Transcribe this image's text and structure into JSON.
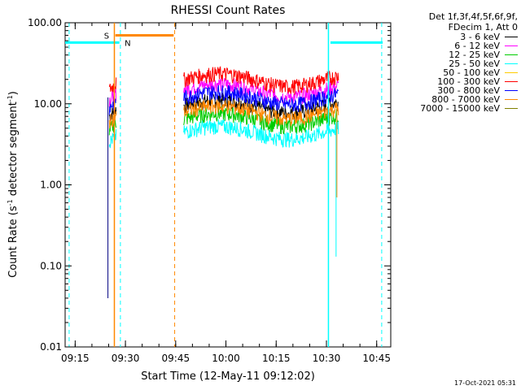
{
  "chart_data": {
    "type": "line",
    "title": "RHESSI Count Rates",
    "xlabel": "Start Time (12-May-11 09:12:02)",
    "ylabel": "Count Rate (s^-1 detector segment^-1)",
    "ylabel_main": "Count Rate (s",
    "ylabel_sup1": "-1",
    "ylabel_mid": " detector segment",
    "ylabel_sup2": "-1",
    "ylabel_end": ")",
    "y_scale": "log",
    "ylim": [
      0.01,
      100
    ],
    "xlim_minutes": [
      9.2,
      10.82
    ],
    "x_ticks": [
      {
        "t": 9.25,
        "label": "09:15"
      },
      {
        "t": 9.5,
        "label": "09:30"
      },
      {
        "t": 9.75,
        "label": "09:45"
      },
      {
        "t": 10.0,
        "label": "10:00"
      },
      {
        "t": 10.25,
        "label": "10:15"
      },
      {
        "t": 10.5,
        "label": "10:30"
      },
      {
        "t": 10.75,
        "label": "10:45"
      }
    ],
    "y_ticks": [
      {
        "v": 0.01,
        "label": "0.01"
      },
      {
        "v": 0.1,
        "label": "0.10"
      },
      {
        "v": 1,
        "label": "1.00"
      },
      {
        "v": 10,
        "label": "10.00"
      },
      {
        "v": 100,
        "label": "100.00"
      }
    ],
    "legend_header": [
      "Det 1f,3f,4f,5f,6f,9f,",
      "FDecim 1, Att 0"
    ],
    "series": [
      {
        "name": "3 - 6 keV",
        "color": "#000000",
        "level": 9.5
      },
      {
        "name": "6 - 12 keV",
        "color": "#ff00ff",
        "level": 15
      },
      {
        "name": "12 - 25 keV",
        "color": "#00cc00",
        "level": 6.5
      },
      {
        "name": "25 - 50 keV",
        "color": "#00ffff",
        "level": 4.5
      },
      {
        "name": "50 - 100 keV",
        "color": "#ffcc00",
        "level": null
      },
      {
        "name": "100 - 300 keV",
        "color": "#ff0000",
        "level": 20
      },
      {
        "name": "300 - 800 keV",
        "color": "#0000ff",
        "level": 12
      },
      {
        "name": "800 - 7000 keV",
        "color": "#ff8800",
        "level": 8
      },
      {
        "name": "7000 - 15000 keV",
        "color": "#808000",
        "level": null
      }
    ],
    "flags": [
      {
        "label": "S",
        "color": "#ff8800"
      },
      {
        "label": "N",
        "color": "#00ffff"
      }
    ],
    "saa_segments": [
      {
        "t0": 9.2,
        "t1": 9.47,
        "level": 57,
        "color": "#00ffff"
      },
      {
        "t0": 10.52,
        "t1": 10.78,
        "level": 57,
        "color": "#00ffff"
      },
      {
        "t0": 9.45,
        "t1": 9.74,
        "level": 70,
        "color": "#ff8800"
      }
    ],
    "dashed_lines": [
      {
        "t": 9.22,
        "color": "#00ffff"
      },
      {
        "t": 9.475,
        "color": "#00ffff"
      },
      {
        "t": 9.745,
        "color": "#ff8800"
      },
      {
        "t": 10.775,
        "color": "#00ffff"
      }
    ],
    "solid_lines": [
      {
        "t": 9.445,
        "color": "#ff8800"
      },
      {
        "t": 10.51,
        "color": "#00ffff"
      }
    ]
  },
  "footer": {
    "date": "17-Oct-2021 05:31"
  }
}
